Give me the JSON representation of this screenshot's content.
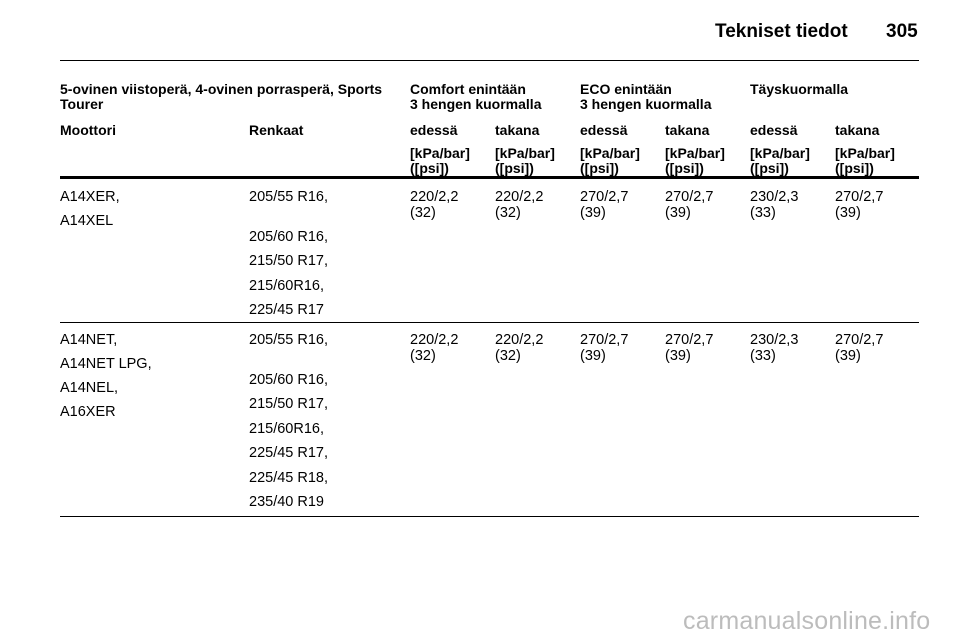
{
  "page_header": {
    "title": "Tekniset tiedot",
    "page_number": "305"
  },
  "table": {
    "title_col": {
      "line1": "5-ovinen viistoperä, 4-ovinen porrasperä, Sports",
      "line2": "Tourer"
    },
    "groups": [
      {
        "line1": "Comfort enintään",
        "line2": "3 hengen kuormalla"
      },
      {
        "line1": "ECO enintään",
        "line2": "3 hengen kuormalla"
      },
      {
        "line1": "Täyskuormalla",
        "line2": ""
      }
    ],
    "headers": {
      "engine": "Moottori",
      "tires": "Renkaat",
      "front": "edessä",
      "rear": "takana",
      "unit_line1": "[kPa/bar]",
      "unit_line2": "([psi])"
    },
    "rows": [
      {
        "engines": [
          "A14XER,",
          "A14XEL"
        ],
        "tires": [
          "205/55 R16,",
          "205/60 R16,",
          "215/50 R17,",
          "215/60R16,",
          "225/45 R17"
        ],
        "pressures": [
          {
            "kpa_bar": "220/2,2",
            "psi": "(32)"
          },
          {
            "kpa_bar": "220/2,2",
            "psi": "(32)"
          },
          {
            "kpa_bar": "270/2,7",
            "psi": "(39)"
          },
          {
            "kpa_bar": "270/2,7",
            "psi": "(39)"
          },
          {
            "kpa_bar": "230/2,3",
            "psi": "(33)"
          },
          {
            "kpa_bar": "270/2,7",
            "psi": "(39)"
          }
        ]
      },
      {
        "engines": [
          "A14NET,",
          "A14NET LPG,",
          "A14NEL,",
          "A16XER"
        ],
        "tires": [
          "205/55 R16,",
          "205/60 R16,",
          "215/50 R17,",
          "215/60R16,",
          "225/45 R17,",
          "225/45 R18,",
          "235/40 R19"
        ],
        "pressures": [
          {
            "kpa_bar": "220/2,2",
            "psi": "(32)"
          },
          {
            "kpa_bar": "220/2,2",
            "psi": "(32)"
          },
          {
            "kpa_bar": "270/2,7",
            "psi": "(39)"
          },
          {
            "kpa_bar": "270/2,7",
            "psi": "(39)"
          },
          {
            "kpa_bar": "230/2,3",
            "psi": "(33)"
          },
          {
            "kpa_bar": "270/2,7",
            "psi": "(39)"
          }
        ]
      }
    ]
  },
  "watermark": "carmanualsonline.info"
}
